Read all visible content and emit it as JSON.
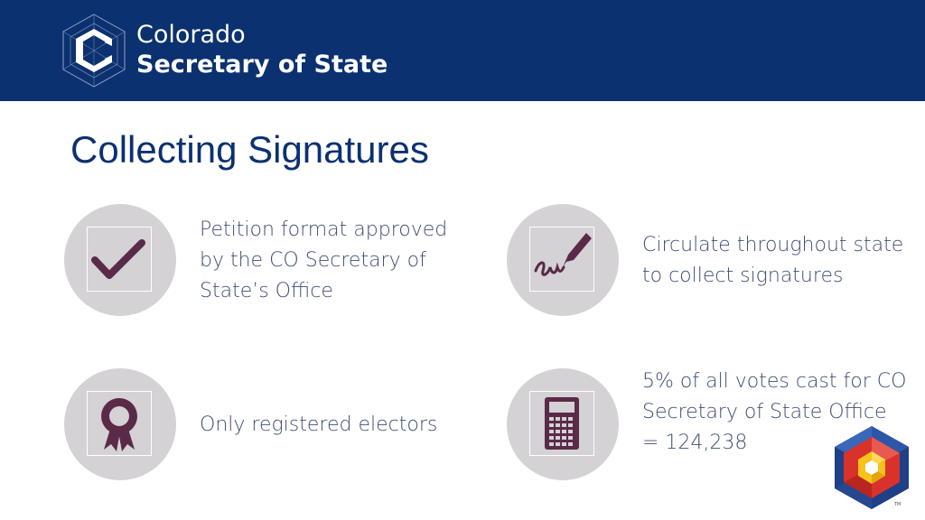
{
  "header": {
    "brand_line1": "Colorado",
    "brand_line2": "Secretary of State",
    "logo_icon": "colorado-c-cube-logo"
  },
  "slide": {
    "title": "Collecting Signatures",
    "items": [
      {
        "icon": "checkmark-icon",
        "text": "Petition format approved by the CO Secretary of State’s Office"
      },
      {
        "icon": "pen-signature-icon",
        "text": "Circulate throughout state to collect signatures"
      },
      {
        "icon": "award-ribbon-icon",
        "text": "Only registered electors"
      },
      {
        "icon": "calculator-icon",
        "text": "5% of all votes cast for CO Secretary of State Office = 124,238"
      }
    ]
  },
  "colors": {
    "header_bg": "#0b3170",
    "title": "#0b3170",
    "body_text": "#3f4f75",
    "icon_circle": "#d4d2d4",
    "icon_glyph": "#5a2a48"
  },
  "corner_logo": "colorado-geometric-flag-logo"
}
